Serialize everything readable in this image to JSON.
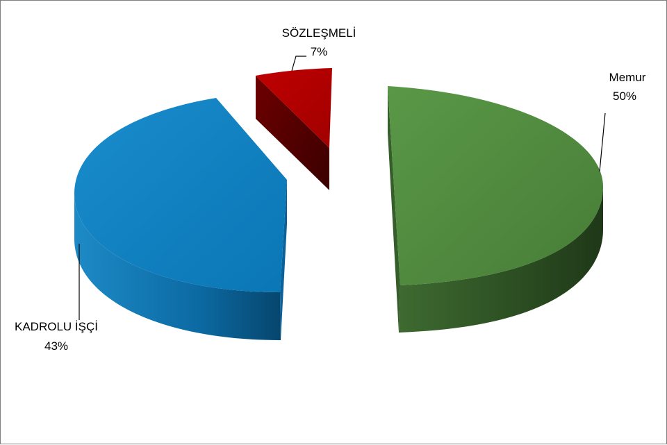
{
  "chart_data": {
    "type": "pie",
    "style": "3d-exploded",
    "title": "",
    "slices": [
      {
        "label": "Memur",
        "value": 50,
        "percent_label": "50%",
        "color": "#4f8a3e",
        "side_color": "#2c4d22"
      },
      {
        "label": "KADROLU İŞÇİ",
        "value": 43,
        "percent_label": "43%",
        "color": "#0f7fc0",
        "side_color": "#0a5a87"
      },
      {
        "label": "SÖZLEŞMELİ",
        "value": 7,
        "percent_label": "7%",
        "color": "#b00000",
        "side_color": "#5a0000"
      }
    ],
    "legend": "none",
    "data_labels": "outside-with-leader-lines"
  }
}
